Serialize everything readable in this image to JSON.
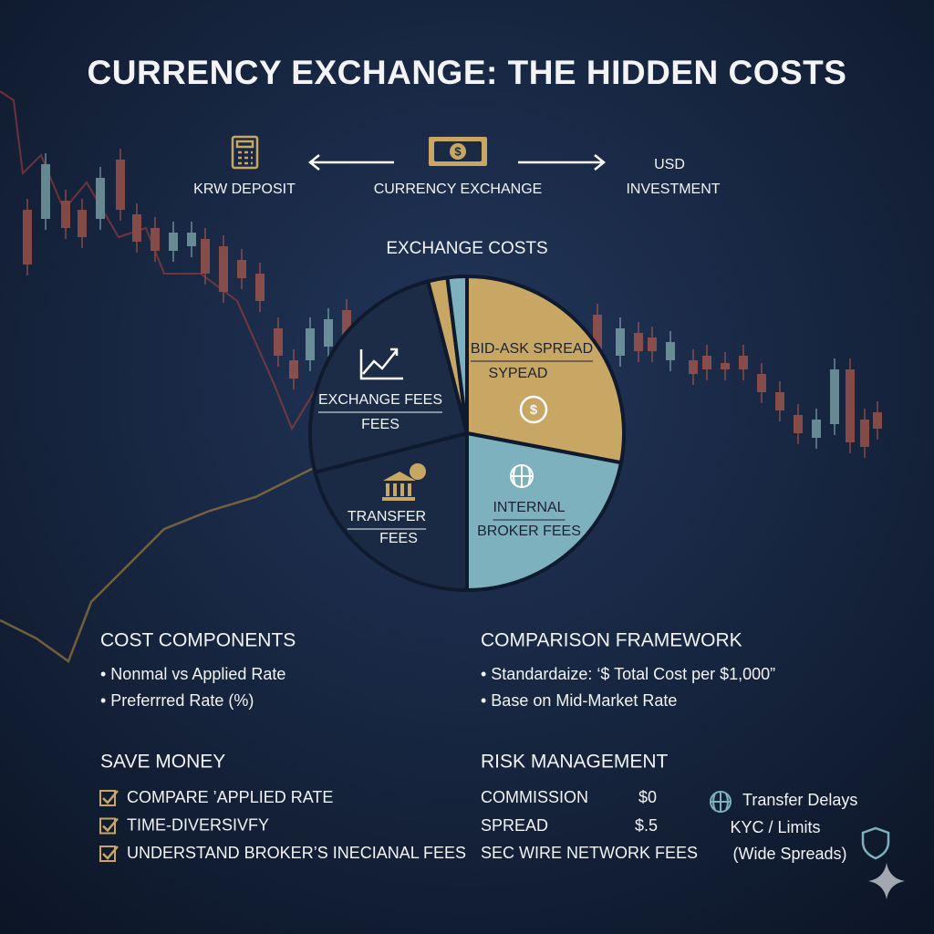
{
  "header": {
    "title": "CURRENCY EXCHANGE: THE HIDDEN COSTS"
  },
  "flow": {
    "left": "KRW DEPOSIT",
    "center": "CURRENCY EXCHANGE",
    "right": [
      "USD",
      "INVESTMENT"
    ]
  },
  "chart_data": {
    "type": "pie",
    "title": "EXCHANGE COSTS",
    "categories": [
      [
        "BID-ASK SPREAD",
        "SYPEAD"
      ],
      [
        "INTERNAL",
        "BROKER FEES"
      ],
      [
        "TRANSFER",
        "FEES"
      ],
      [
        "EXCHANGE FEES",
        "FEES"
      ],
      null,
      null
    ],
    "values": [
      28,
      22,
      21,
      25,
      2,
      2
    ],
    "colors": [
      "#c8a764",
      "#7cb1bd",
      "#1b2a44",
      "#1c2b46",
      "#c8a764",
      "#7cb1bd"
    ]
  },
  "sections": {
    "cost_components": {
      "title": "COST COMPONENTS",
      "items": [
        "• Nonmal vs Applied Rate",
        "• Preferrred Rate (%)"
      ]
    },
    "comparison": {
      "title": "COMPARISON FRAMEWORK",
      "items": [
        "• Standardaize: ‘$ Total Cost per $1,000”",
        "• Base on Mid-Market Rate"
      ]
    },
    "save_money": {
      "title": "SAVE MONEY",
      "items": [
        "COMPARE ’APPLIED RATE",
        "TIME-DIVERSIVFY",
        "UNDERSTAND BROKER’S INECIANAL FEES"
      ]
    },
    "risk": {
      "title": "RISK MANAGEMENT",
      "rows": [
        [
          "COMMISSION",
          "$0"
        ],
        [
          "SPREAD",
          "$.5"
        ],
        [
          "SEC  WIRE NETWORK FEES"
        ]
      ],
      "risks": [
        "Transfer Delays",
        "KYC / Limits",
        "(Wide Spreads)"
      ]
    }
  }
}
